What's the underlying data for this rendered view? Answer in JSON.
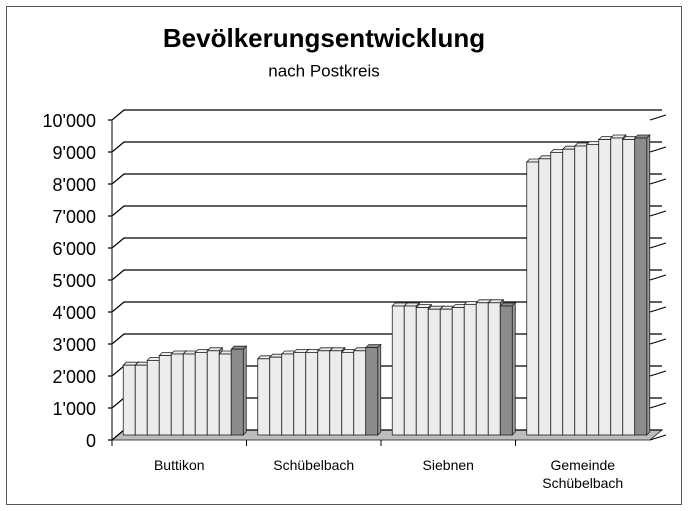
{
  "chart_data": {
    "type": "bar3d",
    "title": "Bevölkerungsentwicklung",
    "subtitle": "nach Postkreis",
    "categories": [
      "Buttikon",
      "Schübelbach",
      "Siebnen",
      "Gemeinde Schübelbach"
    ],
    "series": [
      {
        "color": "#ececec",
        "values": [
          2150,
          2350,
          4000,
          8500
        ]
      },
      {
        "color": "#ececec",
        "values": [
          2150,
          2400,
          4000,
          8600
        ]
      },
      {
        "color": "#ececec",
        "values": [
          2300,
          2500,
          3950,
          8800
        ]
      },
      {
        "color": "#ececec",
        "values": [
          2450,
          2550,
          3900,
          8900
        ]
      },
      {
        "color": "#ececec",
        "values": [
          2500,
          2550,
          3900,
          9000
        ]
      },
      {
        "color": "#ececec",
        "values": [
          2500,
          2600,
          3950,
          9050
        ]
      },
      {
        "color": "#ececec",
        "values": [
          2550,
          2600,
          4050,
          9200
        ]
      },
      {
        "color": "#ececec",
        "values": [
          2600,
          2550,
          4100,
          9250
        ]
      },
      {
        "color": "#ececec",
        "values": [
          2500,
          2600,
          4100,
          9200
        ]
      },
      {
        "color": "#8c8c8c",
        "values": [
          2650,
          2700,
          4000,
          9250
        ]
      }
    ],
    "ylim": [
      0,
      10000
    ],
    "yticks": [
      0,
      {
        "value": 1000,
        "label": "1'000"
      },
      {
        "value": 2000,
        "label": "2'000"
      },
      {
        "value": 3000,
        "label": "3'000"
      },
      {
        "value": 4000,
        "label": "4'000"
      },
      {
        "value": 5000,
        "label": "5'000"
      },
      {
        "value": 6000,
        "label": "6'000"
      },
      {
        "value": 7000,
        "label": "7'000"
      },
      {
        "value": 8000,
        "label": "8'000"
      },
      {
        "value": 9000,
        "label": "9'000"
      },
      {
        "value": 10000,
        "label": "10'000"
      }
    ],
    "grid": true
  }
}
